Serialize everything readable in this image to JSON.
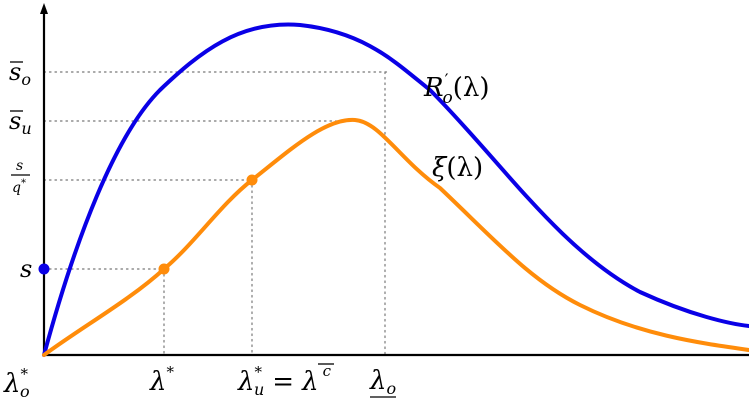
{
  "colors": {
    "blue_curve": "#0a00e6",
    "orange_curve": "#ff8c0a",
    "axis": "#000000",
    "guide": "#777777"
  },
  "curves": [
    {
      "id": "blue",
      "label_main": "R",
      "label_prime": "′",
      "label_sub": "o",
      "label_arg": "(λ)"
    },
    {
      "id": "orange",
      "label_main": "ξ",
      "label_arg": "(λ)"
    }
  ],
  "y_labels": {
    "s_bar_o": {
      "main": "s",
      "sub": "o"
    },
    "s_bar_u": {
      "main": "s",
      "sub": "u"
    },
    "s_over_q": {
      "num": "s",
      "den_main": "q",
      "den_sup": "*"
    },
    "s": {
      "main": "s"
    }
  },
  "x_labels": {
    "lambda_o_star": {
      "main": "λ",
      "sup": "*",
      "sub": "o"
    },
    "lambda_star": {
      "main": "λ",
      "sup": "*"
    },
    "lambda_u_star": {
      "main": "λ",
      "sup": "*",
      "sub": "u",
      "eq": "=",
      "rhs": "λ",
      "rhs_sup": "c"
    },
    "lambda_o_under": {
      "main": "λ",
      "sub": "o"
    }
  }
}
